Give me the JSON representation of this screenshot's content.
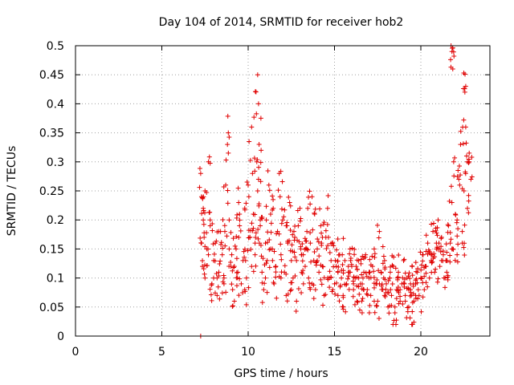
{
  "chart_data": {
    "type": "scatter",
    "title": "Day 104 of 2014, SRMTID for receiver hob2",
    "xlabel": "GPS time / hours",
    "ylabel": "SRMTID / TECUs",
    "xlim": [
      0,
      24
    ],
    "ylim": [
      0,
      0.5
    ],
    "xticks": [
      0,
      5,
      10,
      15,
      20
    ],
    "xtick_labels": [
      "0",
      "5",
      "10",
      "15",
      "20"
    ],
    "yticks": [
      0,
      0.05,
      0.1,
      0.15,
      0.2,
      0.25,
      0.3,
      0.35,
      0.4,
      0.45,
      0.5
    ],
    "ytick_labels": [
      "0",
      "0.05",
      "0.1",
      "0.15",
      "0.2",
      "0.25",
      "0.3",
      "0.35",
      "0.4",
      "0.45",
      "0.5"
    ],
    "grid": true,
    "marker": "+",
    "color": "#e00000",
    "series": [
      {
        "name": "SRMTID",
        "x": [
          7.25,
          7.3,
          7.35,
          7.4,
          7.45,
          7.5,
          7.6,
          7.7,
          7.8,
          7.9,
          8.0,
          8.1,
          8.2,
          8.3,
          8.4,
          8.5,
          8.6,
          8.7,
          8.8,
          8.9,
          9.0,
          9.1,
          9.2,
          9.3,
          9.4,
          9.5,
          9.6,
          9.7,
          9.8,
          9.9,
          10.0,
          10.1,
          10.2,
          10.3,
          10.4,
          10.5,
          10.55,
          10.6,
          10.7,
          10.8,
          10.9,
          11.0,
          11.1,
          11.2,
          11.3,
          11.4,
          11.5,
          11.6,
          11.7,
          11.8,
          11.9,
          12.0,
          12.1,
          12.2,
          12.3,
          12.4,
          12.5,
          12.6,
          12.7,
          12.8,
          12.9,
          13.0,
          13.1,
          13.2,
          13.3,
          13.4,
          13.5,
          13.6,
          13.7,
          13.8,
          13.9,
          14.0,
          14.1,
          14.2,
          14.3,
          14.4,
          14.5,
          14.6,
          14.7,
          14.8,
          14.9,
          15.0,
          15.1,
          15.2,
          15.3,
          15.4,
          15.5,
          15.6,
          15.7,
          15.8,
          15.9,
          16.0,
          16.1,
          16.2,
          16.3,
          16.4,
          16.5,
          16.6,
          16.7,
          16.8,
          16.9,
          17.0,
          17.1,
          17.2,
          17.3,
          17.4,
          17.5,
          17.6,
          17.7,
          17.8,
          17.9,
          18.0,
          18.1,
          18.2,
          18.3,
          18.4,
          18.5,
          18.6,
          18.7,
          18.8,
          18.9,
          19.0,
          19.1,
          19.2,
          19.3,
          19.4,
          19.5,
          19.6,
          19.7,
          19.8,
          19.9,
          20.0,
          20.1,
          20.2,
          20.3,
          20.4,
          20.5,
          20.6,
          20.7,
          20.8,
          20.9,
          21.0,
          21.1,
          21.2,
          21.3,
          21.4,
          21.5,
          21.6,
          21.7,
          21.8,
          21.9,
          22.0,
          22.1,
          22.2,
          22.3,
          22.4,
          22.5,
          22.6,
          22.7,
          22.8,
          22.9,
          7.3,
          7.5,
          7.7,
          8.0,
          8.3,
          8.6,
          8.9,
          9.2,
          9.5,
          9.8,
          10.1,
          10.4,
          10.7,
          11.0,
          11.3,
          11.6,
          11.9,
          12.2,
          12.5,
          12.8,
          13.1,
          13.4,
          13.7,
          14.0,
          14.3,
          14.6,
          14.9,
          15.2,
          15.5,
          15.8,
          16.1,
          16.4,
          16.7,
          17.0,
          17.3,
          17.6,
          17.9,
          18.2,
          18.5,
          18.8,
          19.1,
          19.4,
          19.7,
          20.0,
          20.3,
          20.6,
          20.9,
          21.2,
          21.5,
          21.8,
          22.1,
          22.4,
          22.7,
          7.4,
          7.8,
          8.2,
          8.65,
          9.05,
          9.45,
          9.85,
          10.25,
          10.65,
          11.05,
          11.45,
          11.85,
          12.25,
          12.65,
          13.05,
          13.45,
          13.85,
          14.25,
          14.65,
          15.05,
          15.45,
          15.85,
          16.25,
          16.65,
          17.05,
          17.45,
          17.85,
          18.25,
          18.65,
          19.05,
          19.45,
          19.85,
          20.25,
          20.65,
          21.05,
          21.45,
          21.85,
          22.25,
          22.65,
          10.55,
          10.6,
          21.75,
          21.8,
          21.85,
          22.6,
          22.55,
          8.85,
          10.2,
          10.75,
          19.5,
          19.5
        ],
        "y": [
          0.28,
          0.16,
          0.12,
          0.22,
          0.17,
          0.1,
          0.15,
          0.3,
          0.2,
          0.09,
          0.13,
          0.16,
          0.07,
          0.11,
          0.18,
          0.14,
          0.1,
          0.26,
          0.33,
          0.2,
          0.12,
          0.08,
          0.06,
          0.15,
          0.11,
          0.19,
          0.09,
          0.13,
          0.22,
          0.1,
          0.26,
          0.17,
          0.12,
          0.21,
          0.16,
          0.3,
          0.25,
          0.27,
          0.19,
          0.11,
          0.08,
          0.16,
          0.13,
          0.26,
          0.21,
          0.15,
          0.09,
          0.12,
          0.18,
          0.28,
          0.14,
          0.2,
          0.11,
          0.07,
          0.16,
          0.23,
          0.13,
          0.1,
          0.17,
          0.06,
          0.19,
          0.22,
          0.14,
          0.09,
          0.12,
          0.18,
          0.1,
          0.16,
          0.24,
          0.13,
          0.08,
          0.15,
          0.11,
          0.19,
          0.12,
          0.07,
          0.17,
          0.22,
          0.1,
          0.13,
          0.16,
          0.09,
          0.12,
          0.07,
          0.14,
          0.1,
          0.05,
          0.13,
          0.09,
          0.11,
          0.15,
          0.12,
          0.08,
          0.1,
          0.06,
          0.13,
          0.09,
          0.04,
          0.11,
          0.14,
          0.08,
          0.1,
          0.07,
          0.12,
          0.15,
          0.09,
          0.06,
          0.18,
          0.11,
          0.08,
          0.13,
          0.09,
          0.05,
          0.1,
          0.07,
          0.12,
          0.04,
          0.08,
          0.11,
          0.06,
          0.09,
          0.13,
          0.07,
          0.1,
          0.05,
          0.08,
          0.12,
          0.06,
          0.09,
          0.11,
          0.07,
          0.1,
          0.14,
          0.08,
          0.12,
          0.16,
          0.1,
          0.13,
          0.18,
          0.11,
          0.15,
          0.2,
          0.12,
          0.17,
          0.14,
          0.1,
          0.13,
          0.19,
          0.16,
          0.23,
          0.3,
          0.21,
          0.14,
          0.27,
          0.33,
          0.18,
          0.25,
          0.36,
          0.22,
          0.3,
          0.27,
          0.24,
          0.25,
          0.14,
          0.1,
          0.18,
          0.09,
          0.15,
          0.12,
          0.21,
          0.08,
          0.17,
          0.14,
          0.2,
          0.1,
          0.15,
          0.12,
          0.1,
          0.19,
          0.08,
          0.13,
          0.11,
          0.15,
          0.09,
          0.13,
          0.17,
          0.1,
          0.08,
          0.11,
          0.07,
          0.12,
          0.09,
          0.1,
          0.08,
          0.11,
          0.06,
          0.09,
          0.07,
          0.1,
          0.05,
          0.08,
          0.06,
          0.09,
          0.07,
          0.1,
          0.12,
          0.14,
          0.16,
          0.13,
          0.11,
          0.15,
          0.2,
          0.16,
          0.3,
          0.2,
          0.19,
          0.1,
          0.18,
          0.14,
          0.23,
          0.13,
          0.28,
          0.16,
          0.2,
          0.22,
          0.24,
          0.19,
          0.18,
          0.15,
          0.22,
          0.21,
          0.16,
          0.17,
          0.13,
          0.14,
          0.11,
          0.12,
          0.1,
          0.11,
          0.09,
          0.1,
          0.08,
          0.1,
          0.09,
          0.07,
          0.08,
          0.12,
          0.14,
          0.16,
          0.13,
          0.15,
          0.26,
          0.31,
          0.45,
          0.4,
          0.5,
          0.49,
          0.46,
          0.43,
          0.42,
          0.35,
          0.36,
          0.32,
          0.02,
          0.02
        ],
        "extra_points": [
          {
            "x": 7.25,
            "y": 0.0
          }
        ]
      }
    ]
  }
}
